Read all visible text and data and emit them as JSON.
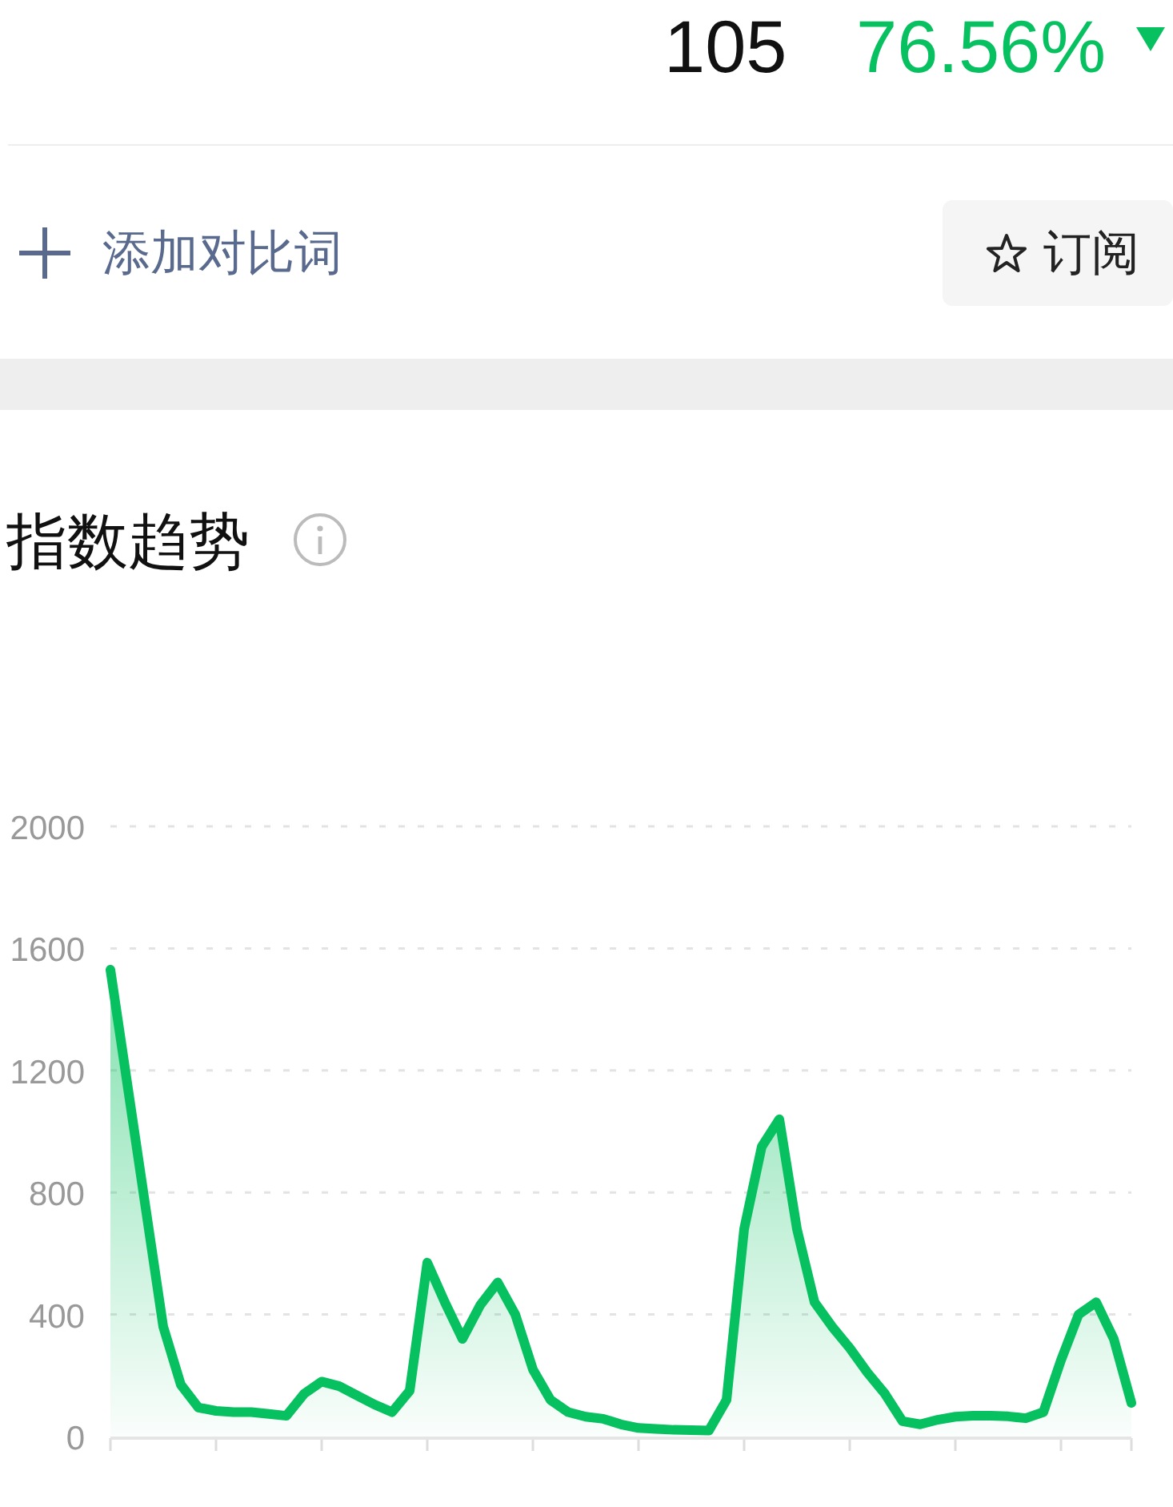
{
  "chart_data": {
    "type": "area",
    "title": "指数趋势",
    "annotations": [
      "105",
      "76.56%",
      "添加对比词",
      "订阅"
    ],
    "categories": [
      null,
      null,
      null,
      null,
      null,
      null,
      null,
      null,
      null,
      null,
      null,
      null,
      null,
      null,
      null,
      null,
      null,
      null,
      null,
      null,
      null,
      null,
      null,
      null,
      null,
      null,
      null,
      null,
      null,
      null,
      null,
      null,
      null,
      null,
      null,
      null,
      null,
      null,
      null,
      null,
      null,
      null,
      null,
      null,
      null,
      null,
      null,
      null,
      null,
      null,
      null,
      null,
      null,
      null,
      null,
      null,
      null,
      null,
      null
    ],
    "values": [
      1530,
      1140,
      750,
      360,
      170,
      95,
      84,
      80,
      80,
      74,
      68,
      140,
      180,
      165,
      135,
      105,
      80,
      150,
      570,
      440,
      320,
      430,
      505,
      400,
      220,
      120,
      80,
      65,
      58,
      40,
      28,
      25,
      22,
      21,
      20,
      120,
      680,
      950,
      1040,
      680,
      440,
      360,
      290,
      210,
      140,
      50,
      40,
      55,
      65,
      68,
      68,
      66,
      60,
      80,
      250,
      400,
      440,
      320,
      110
    ],
    "color": "#07c160",
    "ylim": [
      0,
      2000
    ],
    "yticks": [
      0,
      400,
      800,
      1200,
      1600,
      2000
    ],
    "grid": "y",
    "tick_labels": "y"
  }
}
